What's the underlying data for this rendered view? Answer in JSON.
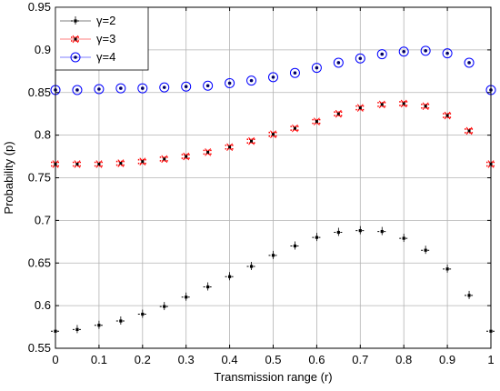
{
  "chart_data": {
    "type": "scatter",
    "xlabel": "Transmission range (r)",
    "ylabel": "Probability (p)",
    "xlim": [
      0,
      1
    ],
    "ylim": [
      0.55,
      0.95
    ],
    "x_ticks": [
      "0",
      "0.1",
      "0.2",
      "0.3",
      "0.4",
      "0.5",
      "0.6",
      "0.7",
      "0.8",
      "0.9",
      "1"
    ],
    "y_ticks": [
      "0.55",
      "0.6",
      "0.65",
      "0.7",
      "0.75",
      "0.8",
      "0.85",
      "0.9",
      "0.95"
    ],
    "grid": true,
    "legend_position": "top-left",
    "x": [
      0,
      0.05,
      0.1,
      0.15,
      0.2,
      0.25,
      0.3,
      0.35,
      0.4,
      0.45,
      0.5,
      0.55,
      0.6,
      0.65,
      0.7,
      0.75,
      0.8,
      0.85,
      0.9,
      0.95,
      1
    ],
    "series": [
      {
        "name": "γ=2",
        "color": "#000000",
        "marker": "dot-with-error-ticks",
        "values": [
          0.57,
          0.572,
          0.577,
          0.582,
          0.59,
          0.599,
          0.61,
          0.622,
          0.634,
          0.646,
          0.659,
          0.67,
          0.68,
          0.686,
          0.688,
          0.687,
          0.679,
          0.665,
          0.643,
          0.612,
          0.57
        ]
      },
      {
        "name": "γ=3",
        "color": "#ff0000",
        "marker": "red-cluster-with-black-dot",
        "values": [
          0.766,
          0.766,
          0.766,
          0.767,
          0.769,
          0.772,
          0.775,
          0.78,
          0.786,
          0.793,
          0.801,
          0.808,
          0.816,
          0.825,
          0.832,
          0.836,
          0.837,
          0.834,
          0.823,
          0.805,
          0.766
        ]
      },
      {
        "name": "γ=4",
        "color": "#0000ff",
        "marker": "open-circle-with-dot",
        "values": [
          0.853,
          0.853,
          0.854,
          0.855,
          0.855,
          0.856,
          0.857,
          0.858,
          0.861,
          0.864,
          0.868,
          0.873,
          0.879,
          0.885,
          0.89,
          0.895,
          0.898,
          0.899,
          0.896,
          0.885,
          0.853
        ]
      }
    ]
  }
}
